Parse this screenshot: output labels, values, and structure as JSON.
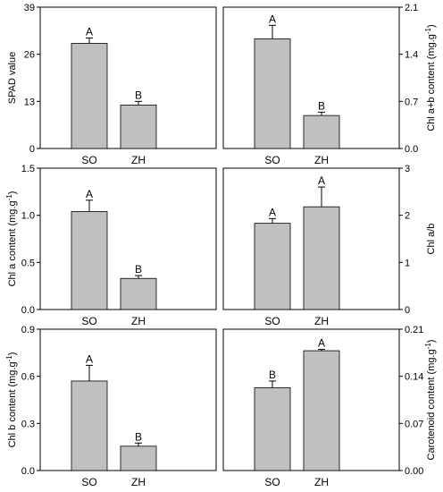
{
  "chart_data": [
    {
      "type": "bar",
      "categories": [
        "SO",
        "ZH"
      ],
      "values": [
        29.0,
        12.0
      ],
      "errors": [
        1.5,
        1.0
      ],
      "letters": [
        "A",
        "B"
      ],
      "ylabel_parts": [
        "SPAD value"
      ],
      "yticks": [
        "0",
        "13",
        "26",
        "39"
      ],
      "ylim": [
        0,
        39
      ],
      "yaxis": "left",
      "bar_color": "#c0c0c0"
    },
    {
      "type": "bar",
      "categories": [
        "SO",
        "ZH"
      ],
      "values": [
        1.63,
        0.49
      ],
      "errors": [
        0.2,
        0.05
      ],
      "letters": [
        "A",
        "B"
      ],
      "ylabel_parts": [
        "Chl a+b content (mg.g",
        "-1",
        ")"
      ],
      "yticks": [
        "0.0",
        "0.7",
        "1.4",
        "2.1"
      ],
      "ylim": [
        0,
        2.1
      ],
      "yaxis": "right",
      "bar_color": "#c0c0c0"
    },
    {
      "type": "bar",
      "categories": [
        "SO",
        "ZH"
      ],
      "values": [
        1.04,
        0.33
      ],
      "errors": [
        0.12,
        0.03
      ],
      "letters": [
        "A",
        "B"
      ],
      "ylabel_parts": [
        "Chl a content (mg.g",
        "-1",
        ")"
      ],
      "yticks": [
        "0.0",
        "0.5",
        "1.0",
        "1.5"
      ],
      "ylim": [
        0,
        1.5
      ],
      "yaxis": "left",
      "bar_color": "#c0c0c0"
    },
    {
      "type": "bar",
      "categories": [
        "SO",
        "ZH"
      ],
      "values": [
        1.83,
        2.18
      ],
      "errors": [
        0.1,
        0.42
      ],
      "letters": [
        "A",
        "A"
      ],
      "ylabel_parts": [
        "Chl a/b"
      ],
      "yticks": [
        "0",
        "1",
        "2",
        "3"
      ],
      "ylim": [
        0,
        3
      ],
      "yaxis": "right",
      "bar_color": "#c0c0c0"
    },
    {
      "type": "bar",
      "categories": [
        "SO",
        "ZH"
      ],
      "values": [
        0.57,
        0.155
      ],
      "errors": [
        0.1,
        0.02
      ],
      "letters": [
        "A",
        "B"
      ],
      "ylabel_parts": [
        "Chl b content (mg.g",
        "-1",
        ")"
      ],
      "yticks": [
        "0.0",
        "0.3",
        "0.6",
        "0.9"
      ],
      "ylim": [
        0,
        0.9
      ],
      "yaxis": "left",
      "bar_color": "#c0c0c0"
    },
    {
      "type": "bar",
      "categories": [
        "SO",
        "ZH"
      ],
      "values": [
        0.123,
        0.178
      ],
      "errors": [
        0.01,
        0.002
      ],
      "letters": [
        "B",
        "A"
      ],
      "ylabel_parts": [
        "Carotenoid content (mg.g",
        "-1",
        ")"
      ],
      "yticks": [
        "0.00",
        "0.07",
        "0.14",
        "0.21"
      ],
      "ylim": [
        0,
        0.21
      ],
      "yaxis": "right",
      "bar_color": "#c0c0c0"
    }
  ]
}
